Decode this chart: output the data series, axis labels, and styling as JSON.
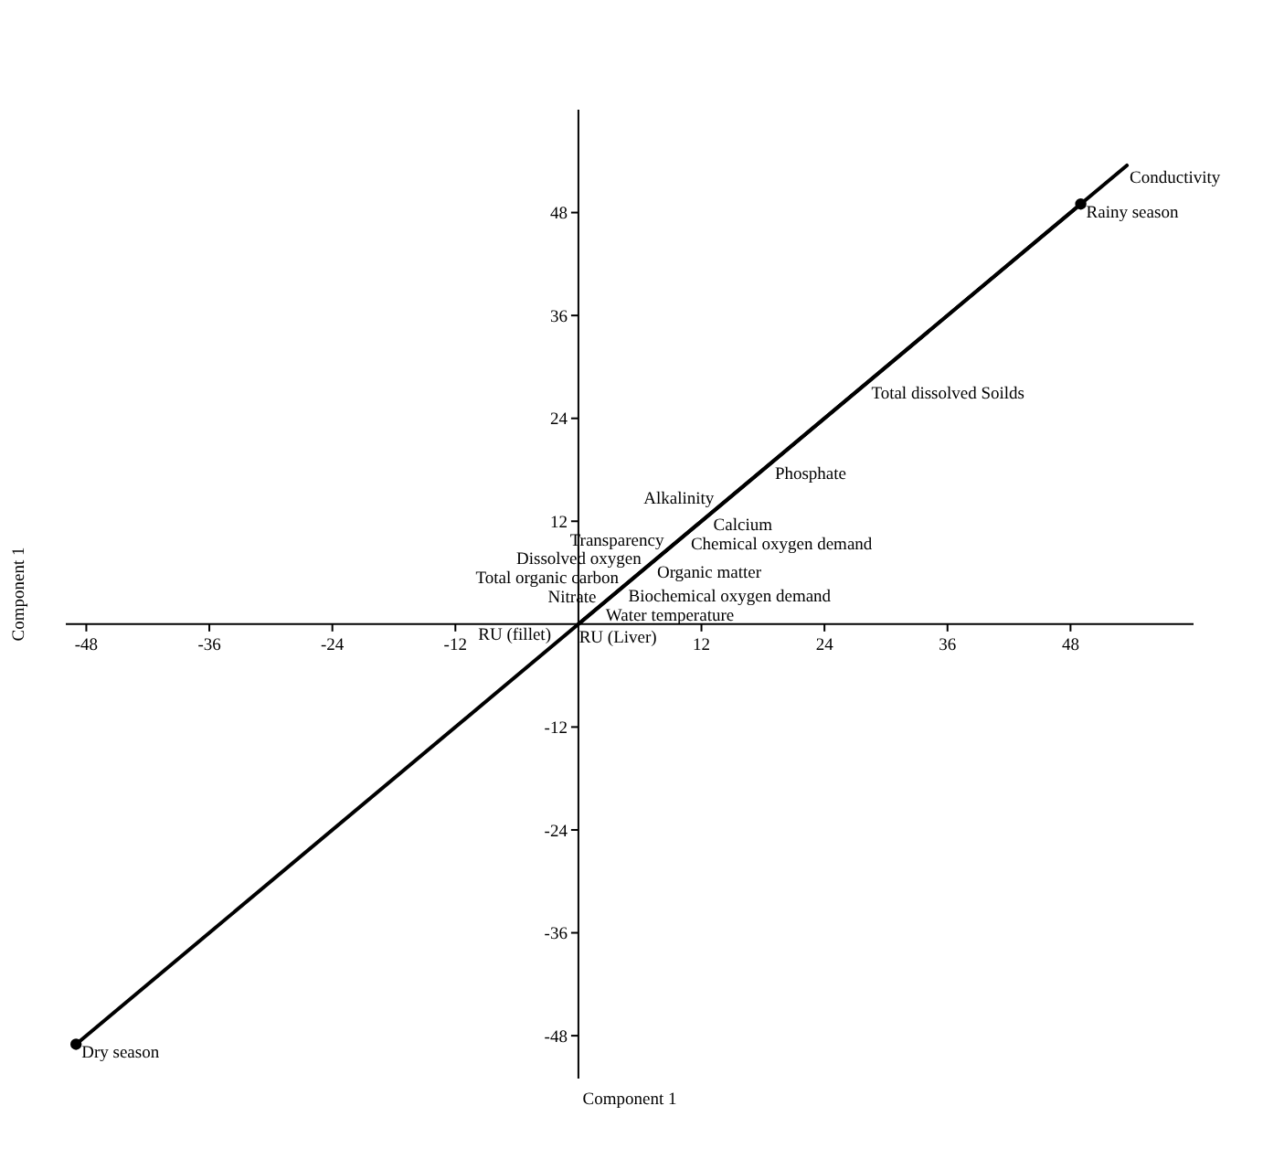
{
  "chart_data": {
    "type": "scatter",
    "xlabel": "Component 1",
    "ylabel": "Component 1",
    "xlim": [
      -50,
      60
    ],
    "ylim": [
      -53,
      60
    ],
    "xticks": [
      -48,
      -36,
      -24,
      -12,
      12,
      24,
      36,
      48
    ],
    "yticks": [
      -48,
      -36,
      -24,
      -12,
      12,
      24,
      36,
      48
    ],
    "series": [
      {
        "type": "line",
        "color": "#000000",
        "x": [
          -49,
          49
        ],
        "values": [
          -49,
          49
        ],
        "marker": "none",
        "line_style": "solid"
      },
      {
        "type": "line",
        "color": "#000000",
        "x": [
          0,
          53.5
        ],
        "values": [
          0,
          53.5
        ],
        "marker": "none",
        "line_style": "solid"
      },
      {
        "type": "scatter",
        "color": "#000000",
        "x": [
          -49,
          49
        ],
        "values": [
          -49,
          49
        ],
        "marker": "circle",
        "value_labels": [
          "Dry season",
          "Rainy season"
        ]
      }
    ],
    "annotations": [
      {
        "text": "Conductivity",
        "x": 53.5,
        "y": 53.5
      },
      {
        "text": "Total dissolved Soilds",
        "x": 28.3,
        "y": 28.3
      },
      {
        "text": "Phosphate",
        "x": 18.9,
        "y": 18.9
      },
      {
        "text": "Calcium",
        "x": 12.9,
        "y": 12.9
      },
      {
        "text": "Alkalinity",
        "x": 13.5,
        "y": 13.5
      },
      {
        "text": "Chemical oxygen demand",
        "x": 10.7,
        "y": 10.7
      },
      {
        "text": "Organic matter",
        "x": 7.4,
        "y": 7.4
      },
      {
        "text": "Transparency",
        "x": 8.6,
        "y": 8.6
      },
      {
        "text": "Dissolved oxygen",
        "x": 6.4,
        "y": 6.4
      },
      {
        "text": "Biochemical oxygen demand",
        "x": 4.6,
        "y": 4.6
      },
      {
        "text": "Total organic carbon",
        "x": 4.2,
        "y": 4.2
      },
      {
        "text": "Water temperature",
        "x": 2.4,
        "y": 2.4
      },
      {
        "text": "Nitrate",
        "x": 2,
        "y": 2
      },
      {
        "text": "RU (Liver)",
        "x": -0.2,
        "y": -0.2
      },
      {
        "text": "RU (fillet)",
        "x": -2.4,
        "y": -2.4
      }
    ]
  }
}
